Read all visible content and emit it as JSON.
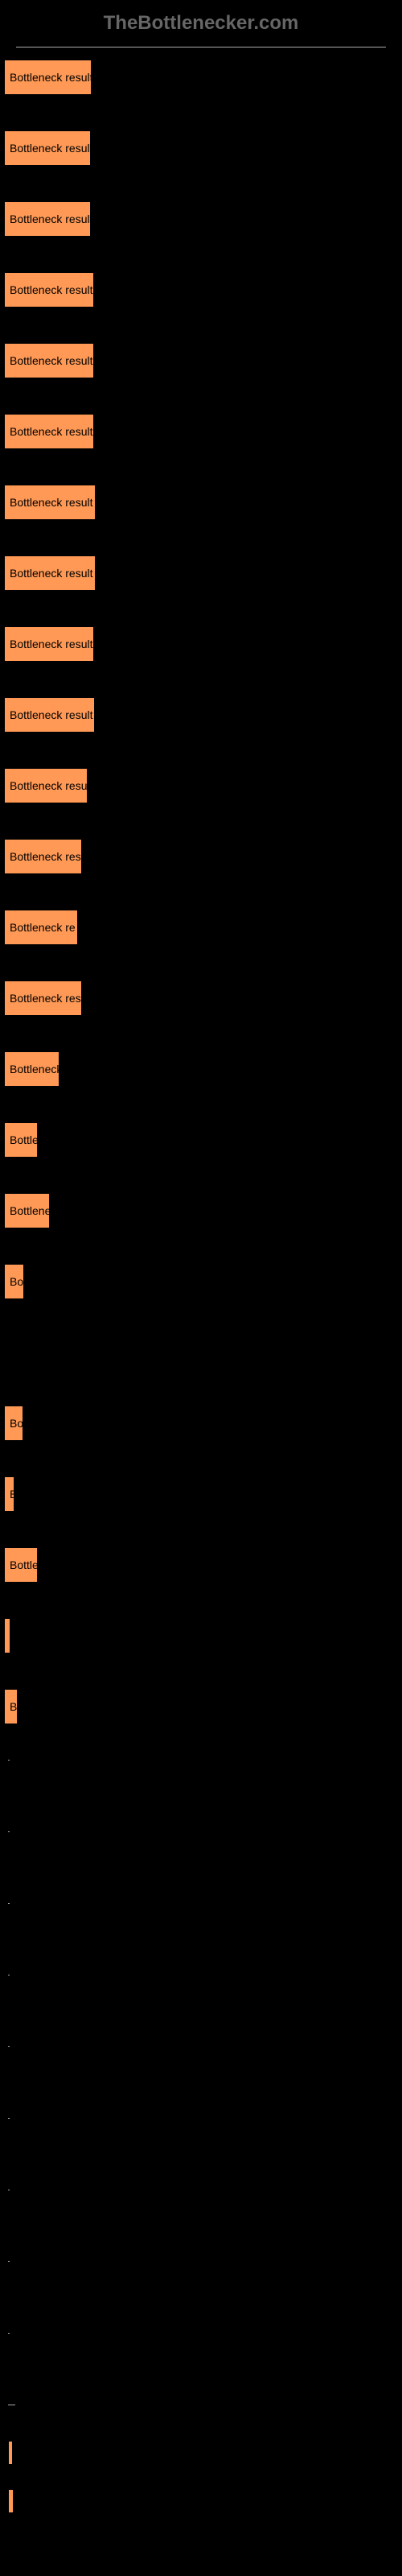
{
  "header": {
    "title": "TheBottlenecker.com"
  },
  "chart": {
    "type": "bar",
    "bar_color": "#ff9955",
    "background_color": "#000000",
    "border_color": "#000000",
    "text_color": "#000000",
    "header_color": "#666666",
    "hr_color": "#aaaaaa",
    "bars": [
      {
        "label": "Bottleneck result",
        "width": 109
      },
      {
        "label": "Bottleneck result",
        "width": 108
      },
      {
        "label": "Bottleneck result",
        "width": 108
      },
      {
        "label": "Bottleneck result",
        "width": 112
      },
      {
        "label": "Bottleneck result",
        "width": 112
      },
      {
        "label": "Bottleneck result",
        "width": 112
      },
      {
        "label": "Bottleneck result",
        "width": 114
      },
      {
        "label": "Bottleneck result",
        "width": 114
      },
      {
        "label": "Bottleneck result",
        "width": 112
      },
      {
        "label": "Bottleneck result",
        "width": 113
      },
      {
        "label": "Bottleneck resu",
        "width": 104
      },
      {
        "label": "Bottleneck res",
        "width": 97
      },
      {
        "label": "Bottleneck re",
        "width": 92
      },
      {
        "label": "Bottleneck res",
        "width": 97
      },
      {
        "label": "Bottleneck",
        "width": 69
      },
      {
        "label": "Bottle",
        "width": 42
      },
      {
        "label": "Bottlene",
        "width": 57
      },
      {
        "label": "Bot",
        "width": 25
      },
      {
        "label": "",
        "width": 0
      },
      {
        "label": "Bot",
        "width": 24
      },
      {
        "label": "B",
        "width": 13
      },
      {
        "label": "Bottle",
        "width": 42
      },
      {
        "label": "",
        "width": 2
      },
      {
        "label": "Bo",
        "width": 17
      }
    ],
    "small_hr_width": 9,
    "bottom_bars": [
      {
        "width": 6
      },
      {
        "width": 7
      }
    ]
  }
}
